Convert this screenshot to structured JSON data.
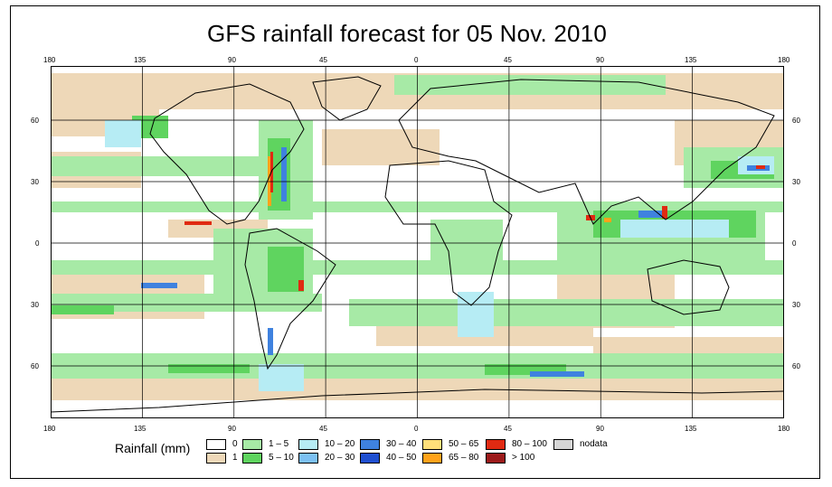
{
  "title": "GFS rainfall forecast for 05 Nov. 2010",
  "longitude_ticks": [
    "180",
    "135",
    "90",
    "45",
    "0",
    "45",
    "90",
    "135",
    "180"
  ],
  "latitude_ticks": [
    "60",
    "30",
    "0",
    "30",
    "60"
  ],
  "legend": {
    "label": "Rainfall (mm)",
    "items": [
      {
        "text": "0",
        "color": "#ffffff"
      },
      {
        "text": "1",
        "color": "#eed8b8"
      },
      {
        "text": "1 – 5",
        "color": "#a7eaa6"
      },
      {
        "text": "5 – 10",
        "color": "#5fd45f"
      },
      {
        "text": "10 – 20",
        "color": "#b6ecf4"
      },
      {
        "text": "20 – 30",
        "color": "#7cc0f2"
      },
      {
        "text": "30 – 40",
        "color": "#3f82df"
      },
      {
        "text": "40 – 50",
        "color": "#1f4fd0"
      },
      {
        "text": "50 – 65",
        "color": "#ffdf7a"
      },
      {
        "text": "65 – 80",
        "color": "#ffa21a"
      },
      {
        "text": "80 – 100",
        "color": "#e02a12"
      },
      {
        "text": "> 100",
        "color": "#9c1a1a"
      },
      {
        "text": "nodata",
        "color": "#d6d6d6"
      }
    ]
  }
}
